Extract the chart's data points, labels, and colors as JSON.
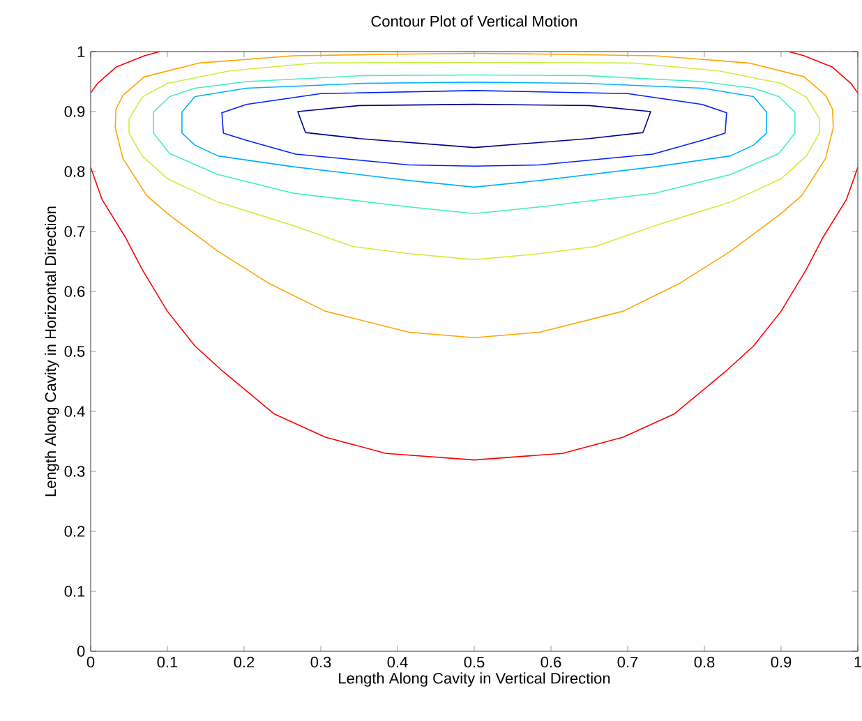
{
  "chart_data": {
    "type": "line",
    "title": "Contour Plot of Vertical Motion",
    "xlabel": "Length Along Cavity in Vertical Direction",
    "ylabel": "Length Along Cavity in Horizontal Direction",
    "xlim": [
      0,
      1
    ],
    "ylim": [
      0,
      1
    ],
    "xticks": [
      0,
      0.1,
      0.2,
      0.3,
      0.4,
      0.5,
      0.6,
      0.7,
      0.8,
      0.9,
      1
    ],
    "yticks": [
      0,
      0.1,
      0.2,
      0.3,
      0.4,
      0.5,
      0.6,
      0.7,
      0.8,
      0.9,
      1
    ],
    "grid": false,
    "marker": "none",
    "line_style": "solid",
    "series": [
      {
        "color": "#ff0000",
        "x": [
          0,
          0.015,
          0.045,
          0.067,
          0.1,
          0.136,
          0.173,
          0.239,
          0.306,
          0.385,
          0.5,
          0.615,
          0.694,
          0.761,
          0.827,
          0.864,
          0.9,
          0.933,
          0.955,
          0.985,
          1,
          null,
          0,
          0.009,
          0.033,
          0.07,
          0.09,
          null,
          0.91,
          0.93,
          0.967,
          0.991,
          1
        ],
        "values": [
          0.807,
          0.753,
          0.691,
          0.637,
          0.567,
          0.509,
          0.466,
          0.396,
          0.357,
          0.33,
          0.319,
          0.33,
          0.357,
          0.396,
          0.466,
          0.509,
          0.567,
          0.637,
          0.691,
          0.753,
          0.807,
          null,
          0.931,
          0.947,
          0.974,
          0.993,
          1,
          null,
          1,
          0.993,
          0.974,
          0.947,
          0.931
        ]
      },
      {
        "color": "#ffa500",
        "x": [
          0.032,
          0.042,
          0.073,
          0.1,
          0.166,
          0.233,
          0.306,
          0.415,
          0.5,
          0.585,
          0.694,
          0.767,
          0.834,
          0.9,
          0.927,
          0.958,
          0.968,
          null,
          0.032,
          0.033,
          0.042,
          0.07,
          0.142,
          0.264,
          0.415,
          0.5,
          0.585,
          0.736,
          0.858,
          0.93,
          0.958,
          0.967,
          0.968
        ],
        "values": [
          0.873,
          0.822,
          0.76,
          0.73,
          0.667,
          0.613,
          0.567,
          0.532,
          0.523,
          0.532,
          0.567,
          0.613,
          0.667,
          0.73,
          0.76,
          0.822,
          0.873,
          null,
          0.873,
          0.904,
          0.927,
          0.958,
          0.981,
          0.993,
          0.996,
          0.997,
          0.996,
          0.993,
          0.981,
          0.958,
          0.927,
          0.904,
          0.873
        ]
      },
      {
        "color": "#c8f03c",
        "x": [
          0.05,
          0.067,
          0.1,
          0.166,
          0.224,
          0.264,
          0.342,
          0.415,
          0.5,
          0.585,
          0.658,
          0.736,
          0.776,
          0.834,
          0.9,
          0.933,
          0.95,
          null,
          0.05,
          0.05,
          0.067,
          0.1,
          0.182,
          0.294,
          0.5,
          0.706,
          0.818,
          0.9,
          0.933,
          0.95,
          0.95
        ],
        "values": [
          0.864,
          0.826,
          0.788,
          0.749,
          0.726,
          0.71,
          0.675,
          0.663,
          0.653,
          0.663,
          0.675,
          0.71,
          0.726,
          0.749,
          0.788,
          0.826,
          0.864,
          null,
          0.864,
          0.888,
          0.924,
          0.947,
          0.968,
          0.981,
          0.982,
          0.981,
          0.968,
          0.947,
          0.924,
          0.888,
          0.864
        ]
      },
      {
        "color": "#40f0c0",
        "x": [
          0.082,
          0.103,
          0.166,
          0.264,
          0.415,
          0.5,
          0.585,
          0.736,
          0.834,
          0.897,
          0.918,
          null,
          0.082,
          0.082,
          0.103,
          0.136,
          0.203,
          0.355,
          0.5,
          0.645,
          0.797,
          0.864,
          0.897,
          0.918,
          0.918
        ],
        "values": [
          0.864,
          0.83,
          0.795,
          0.764,
          0.741,
          0.73,
          0.741,
          0.764,
          0.795,
          0.83,
          0.864,
          null,
          0.864,
          0.899,
          0.925,
          0.939,
          0.95,
          0.96,
          0.961,
          0.96,
          0.95,
          0.939,
          0.925,
          0.899,
          0.864
        ]
      },
      {
        "color": "#00b0ff",
        "x": [
          0.119,
          0.136,
          0.166,
          0.264,
          0.415,
          0.5,
          0.585,
          0.736,
          0.834,
          0.864,
          0.881,
          null,
          0.119,
          0.119,
          0.136,
          0.203,
          0.355,
          0.5,
          0.645,
          0.797,
          0.864,
          0.881,
          0.881
        ],
        "values": [
          0.864,
          0.844,
          0.826,
          0.808,
          0.785,
          0.774,
          0.785,
          0.808,
          0.826,
          0.844,
          0.864,
          null,
          0.864,
          0.899,
          0.925,
          0.939,
          0.947,
          0.949,
          0.947,
          0.939,
          0.925,
          0.899,
          0.864
        ]
      },
      {
        "color": "#0020ff",
        "x": [
          0.173,
          0.203,
          0.267,
          0.415,
          0.5,
          0.585,
          0.733,
          0.797,
          0.827,
          null,
          0.173,
          0.171,
          0.203,
          0.3,
          0.5,
          0.7,
          0.797,
          0.829,
          0.827
        ],
        "values": [
          0.864,
          0.852,
          0.829,
          0.811,
          0.809,
          0.811,
          0.829,
          0.852,
          0.864,
          null,
          0.864,
          0.898,
          0.912,
          0.93,
          0.935,
          0.93,
          0.912,
          0.898,
          0.864
        ]
      },
      {
        "color": "#00008f",
        "x": [
          0.28,
          0.35,
          0.5,
          0.65,
          0.72,
          null,
          0.28,
          0.27,
          0.35,
          0.5,
          0.65,
          0.73,
          0.72
        ],
        "values": [
          0.865,
          0.855,
          0.84,
          0.855,
          0.865,
          null,
          0.865,
          0.9,
          0.91,
          0.912,
          0.91,
          0.9,
          0.865
        ]
      }
    ]
  }
}
